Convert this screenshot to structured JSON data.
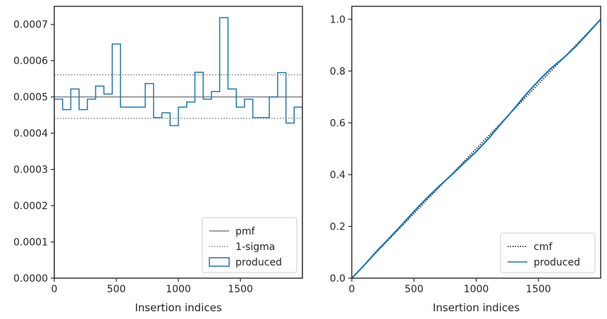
{
  "chart_data": [
    {
      "type": "step",
      "xlabel": "Insertion indices",
      "ylabel": "",
      "xlim": [
        0,
        2000
      ],
      "ylim": [
        0,
        0.00075
      ],
      "xticks": [
        0,
        500,
        1000,
        1500
      ],
      "xtick_labels": [
        "0",
        "500",
        "1000",
        "1500"
      ],
      "yticks": [
        0,
        0.0001,
        0.0002,
        0.0003,
        0.0004,
        0.0005,
        0.0006,
        0.0007
      ],
      "ytick_labels": [
        "0.0000",
        "0.0001",
        "0.0002",
        "0.0003",
        "0.0004",
        "0.0005",
        "0.0006",
        "0.0007"
      ],
      "bin_edges": [
        0,
        67,
        133,
        200,
        267,
        333,
        400,
        467,
        533,
        600,
        667,
        733,
        800,
        867,
        933,
        1000,
        1067,
        1133,
        1200,
        1267,
        1333,
        1400,
        1467,
        1533,
        1600,
        1667,
        1733,
        1800,
        1867,
        1933,
        2000
      ],
      "series": [
        {
          "name": "produced",
          "kind": "hist-step",
          "color": "#1f77b4",
          "values": [
            0.000494,
            0.000465,
            0.000522,
            0.000465,
            0.000494,
            0.00053,
            0.000508,
            0.000646,
            0.000472,
            0.000472,
            0.000472,
            0.000537,
            0.000443,
            0.000456,
            0.000421,
            0.000472,
            0.000486,
            0.000568,
            0.000494,
            0.000515,
            0.000719,
            0.000522,
            0.000472,
            0.000494,
            0.000443,
            0.000443,
            0.0005,
            0.000567,
            0.000428,
            0.000472
          ]
        },
        {
          "name": "pmf",
          "kind": "hline",
          "value": 0.0005,
          "color": "#808080",
          "style": "solid"
        },
        {
          "name": "1-sigma",
          "kind": "hline",
          "values": [
            0.000561,
            0.000441
          ],
          "color": "#808080",
          "style": "dotted"
        }
      ],
      "legend": {
        "placement": "lower right",
        "entries": [
          "pmf",
          "1-sigma",
          "produced"
        ]
      },
      "grid": false
    },
    {
      "type": "line",
      "xlabel": "Insertion indices",
      "ylabel": "",
      "xlim": [
        0,
        2000
      ],
      "ylim": [
        0,
        1.05
      ],
      "xticks": [
        0,
        500,
        1000,
        1500
      ],
      "xtick_labels": [
        "0",
        "500",
        "1000",
        "1500"
      ],
      "yticks": [
        0,
        0.2,
        0.4,
        0.6,
        0.8,
        1.0
      ],
      "ytick_labels": [
        "0.0",
        "0.2",
        "0.4",
        "0.6",
        "0.8",
        "1.0"
      ],
      "series": [
        {
          "name": "cmf",
          "kind": "line",
          "color": "#000000",
          "style": "dotted",
          "x": [
            0,
            2000
          ],
          "y": [
            0,
            1.0
          ]
        },
        {
          "name": "produced",
          "kind": "line",
          "color": "#1f77b4",
          "style": "solid",
          "x": [
            0,
            100,
            200,
            300,
            400,
            500,
            600,
            700,
            800,
            900,
            1000,
            1100,
            1200,
            1300,
            1400,
            1500,
            1600,
            1700,
            1800,
            1900,
            2000
          ],
          "y": [
            0.0,
            0.05,
            0.104,
            0.154,
            0.205,
            0.258,
            0.308,
            0.354,
            0.398,
            0.444,
            0.489,
            0.54,
            0.597,
            0.652,
            0.71,
            0.762,
            0.81,
            0.85,
            0.895,
            0.947,
            1.0
          ]
        }
      ],
      "legend": {
        "placement": "lower right",
        "entries": [
          "cmf",
          "produced"
        ]
      },
      "grid": false
    }
  ]
}
